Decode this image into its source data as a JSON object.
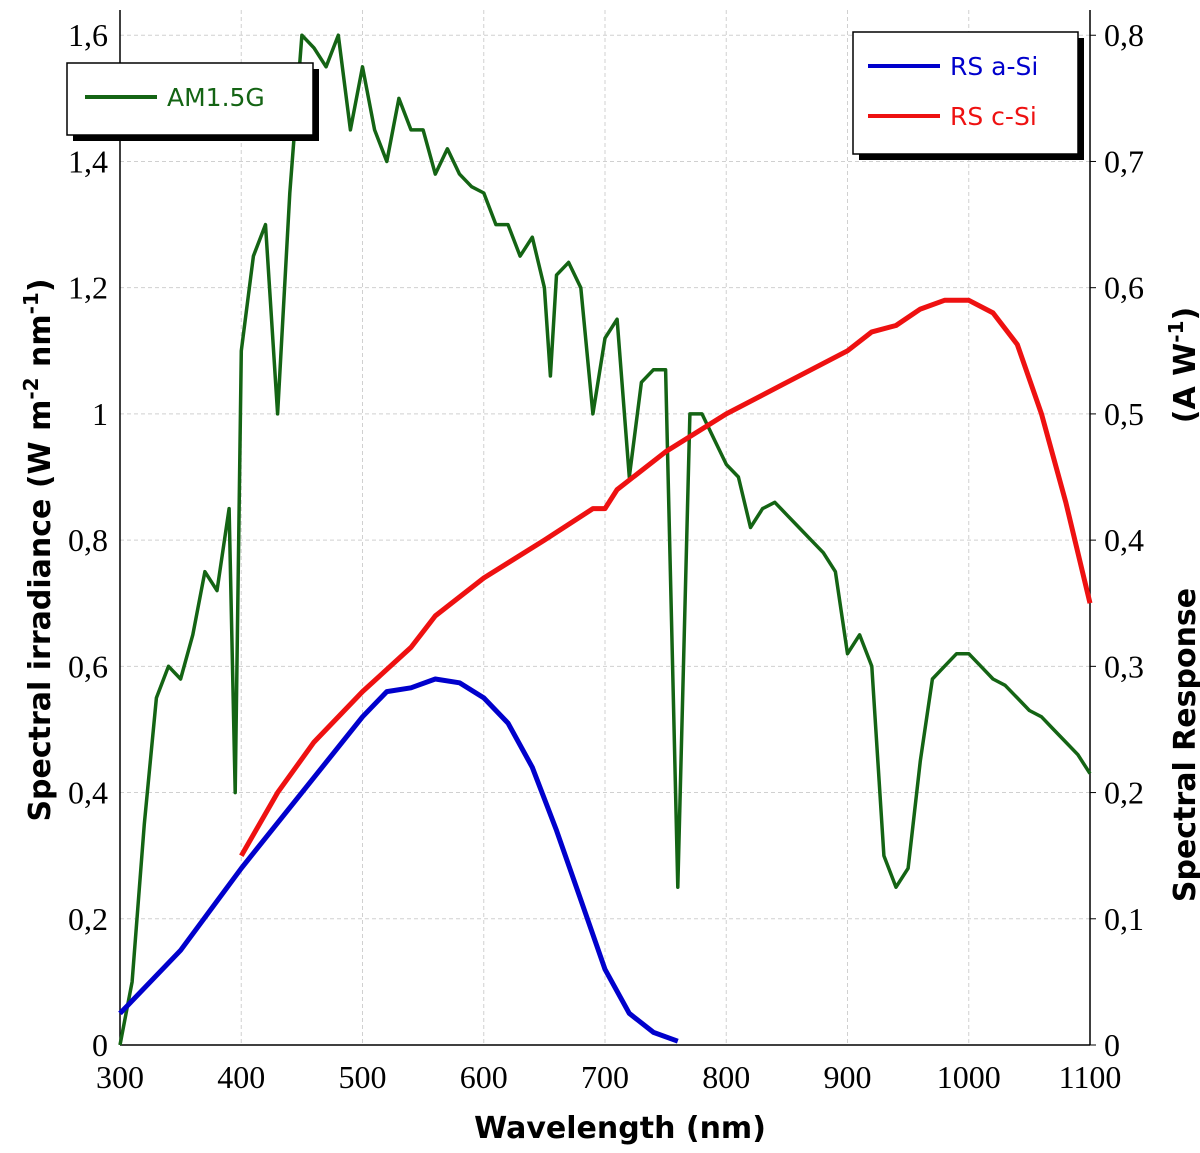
{
  "chart_data": {
    "type": "line",
    "xlabel": "Wavelength (nm)",
    "ylabel": [
      "Spectral irradiance (W m",
      "-2",
      " nm",
      "-1",
      ")"
    ],
    "y2label": [
      "Spectral Response",
      "(A W",
      "-1",
      ")"
    ],
    "xlim": [
      300,
      1100
    ],
    "xticks": [
      300,
      400,
      500,
      600,
      700,
      800,
      900,
      1000,
      1100
    ],
    "ylim": [
      0,
      1.64
    ],
    "yticks": [
      0,
      {
        "value": 0.2,
        "label": "0,2"
      },
      {
        "value": 0.4,
        "label": "0,4"
      },
      {
        "value": 0.6,
        "label": "0,6"
      },
      {
        "value": 0.8,
        "label": "0,8"
      },
      1,
      {
        "value": 1.2,
        "label": "1,2"
      },
      {
        "value": 1.4,
        "label": "1,4"
      },
      {
        "value": 1.6,
        "label": "1,6"
      }
    ],
    "y2lim": [
      0,
      0.82
    ],
    "y2ticks": [
      0,
      {
        "value": 0.1,
        "label": "0,1"
      },
      {
        "value": 0.2,
        "label": "0,2"
      },
      {
        "value": 0.3,
        "label": "0,3"
      },
      {
        "value": 0.4,
        "label": "0,4"
      },
      {
        "value": 0.5,
        "label": "0,5"
      },
      {
        "value": 0.6,
        "label": "0,6"
      },
      {
        "value": 0.7,
        "label": "0,7"
      },
      {
        "value": 0.8,
        "label": "0,8"
      }
    ],
    "grid": true,
    "series": [
      {
        "name": "AM1.5G",
        "color": "#146414",
        "legend": "upper left",
        "x": [
          300,
          310,
          320,
          330,
          340,
          350,
          360,
          370,
          380,
          390,
          395,
          400,
          410,
          420,
          430,
          440,
          450,
          460,
          470,
          480,
          490,
          500,
          510,
          520,
          530,
          540,
          550,
          560,
          570,
          580,
          590,
          600,
          610,
          620,
          630,
          640,
          650,
          655,
          660,
          670,
          680,
          690,
          700,
          710,
          720,
          730,
          740,
          750,
          760,
          770,
          780,
          790,
          800,
          810,
          820,
          830,
          840,
          850,
          860,
          870,
          880,
          890,
          900,
          910,
          920,
          930,
          940,
          950,
          960,
          970,
          980,
          990,
          1000,
          1010,
          1020,
          1030,
          1040,
          1050,
          1060,
          1070,
          1080,
          1090,
          1100
        ],
        "values": [
          0.0,
          0.1,
          0.35,
          0.55,
          0.6,
          0.58,
          0.65,
          0.75,
          0.72,
          0.85,
          0.4,
          1.1,
          1.25,
          1.3,
          1.0,
          1.35,
          1.6,
          1.58,
          1.55,
          1.6,
          1.45,
          1.55,
          1.45,
          1.4,
          1.5,
          1.45,
          1.45,
          1.38,
          1.42,
          1.38,
          1.36,
          1.35,
          1.3,
          1.3,
          1.25,
          1.28,
          1.2,
          1.06,
          1.22,
          1.24,
          1.2,
          1.0,
          1.12,
          1.15,
          0.9,
          1.05,
          1.07,
          1.07,
          0.25,
          1.0,
          1.0,
          0.96,
          0.92,
          0.9,
          0.82,
          0.85,
          0.86,
          0.84,
          0.82,
          0.8,
          0.78,
          0.75,
          0.62,
          0.65,
          0.6,
          0.3,
          0.25,
          0.28,
          0.45,
          0.58,
          0.6,
          0.62,
          0.62,
          0.6,
          0.58,
          0.57,
          0.55,
          0.53,
          0.52,
          0.5,
          0.48,
          0.46,
          0.43
        ]
      },
      {
        "name": "RS a-Si",
        "color": "#0000cc",
        "legend": "upper right",
        "axis": "y2",
        "x": [
          300,
          350,
          400,
          450,
          500,
          520,
          540,
          560,
          580,
          600,
          620,
          640,
          660,
          680,
          700,
          720,
          740,
          760
        ],
        "values": [
          0.025,
          0.075,
          0.14,
          0.2,
          0.26,
          0.28,
          0.283,
          0.29,
          0.287,
          0.275,
          0.255,
          0.22,
          0.17,
          0.115,
          0.06,
          0.025,
          0.01,
          0.003
        ]
      },
      {
        "name": "RS c-Si",
        "color": "#ee1111",
        "legend": "upper right",
        "axis": "y2",
        "x": [
          400,
          430,
          460,
          500,
          540,
          560,
          600,
          650,
          690,
          700,
          710,
          750,
          800,
          850,
          900,
          920,
          940,
          960,
          980,
          1000,
          1020,
          1040,
          1060,
          1080,
          1100
        ],
        "values": [
          0.15,
          0.2,
          0.24,
          0.28,
          0.315,
          0.34,
          0.37,
          0.4,
          0.425,
          0.425,
          0.44,
          0.47,
          0.5,
          0.525,
          0.55,
          0.565,
          0.57,
          0.583,
          0.59,
          0.59,
          0.58,
          0.555,
          0.5,
          0.43,
          0.35
        ]
      }
    ]
  }
}
